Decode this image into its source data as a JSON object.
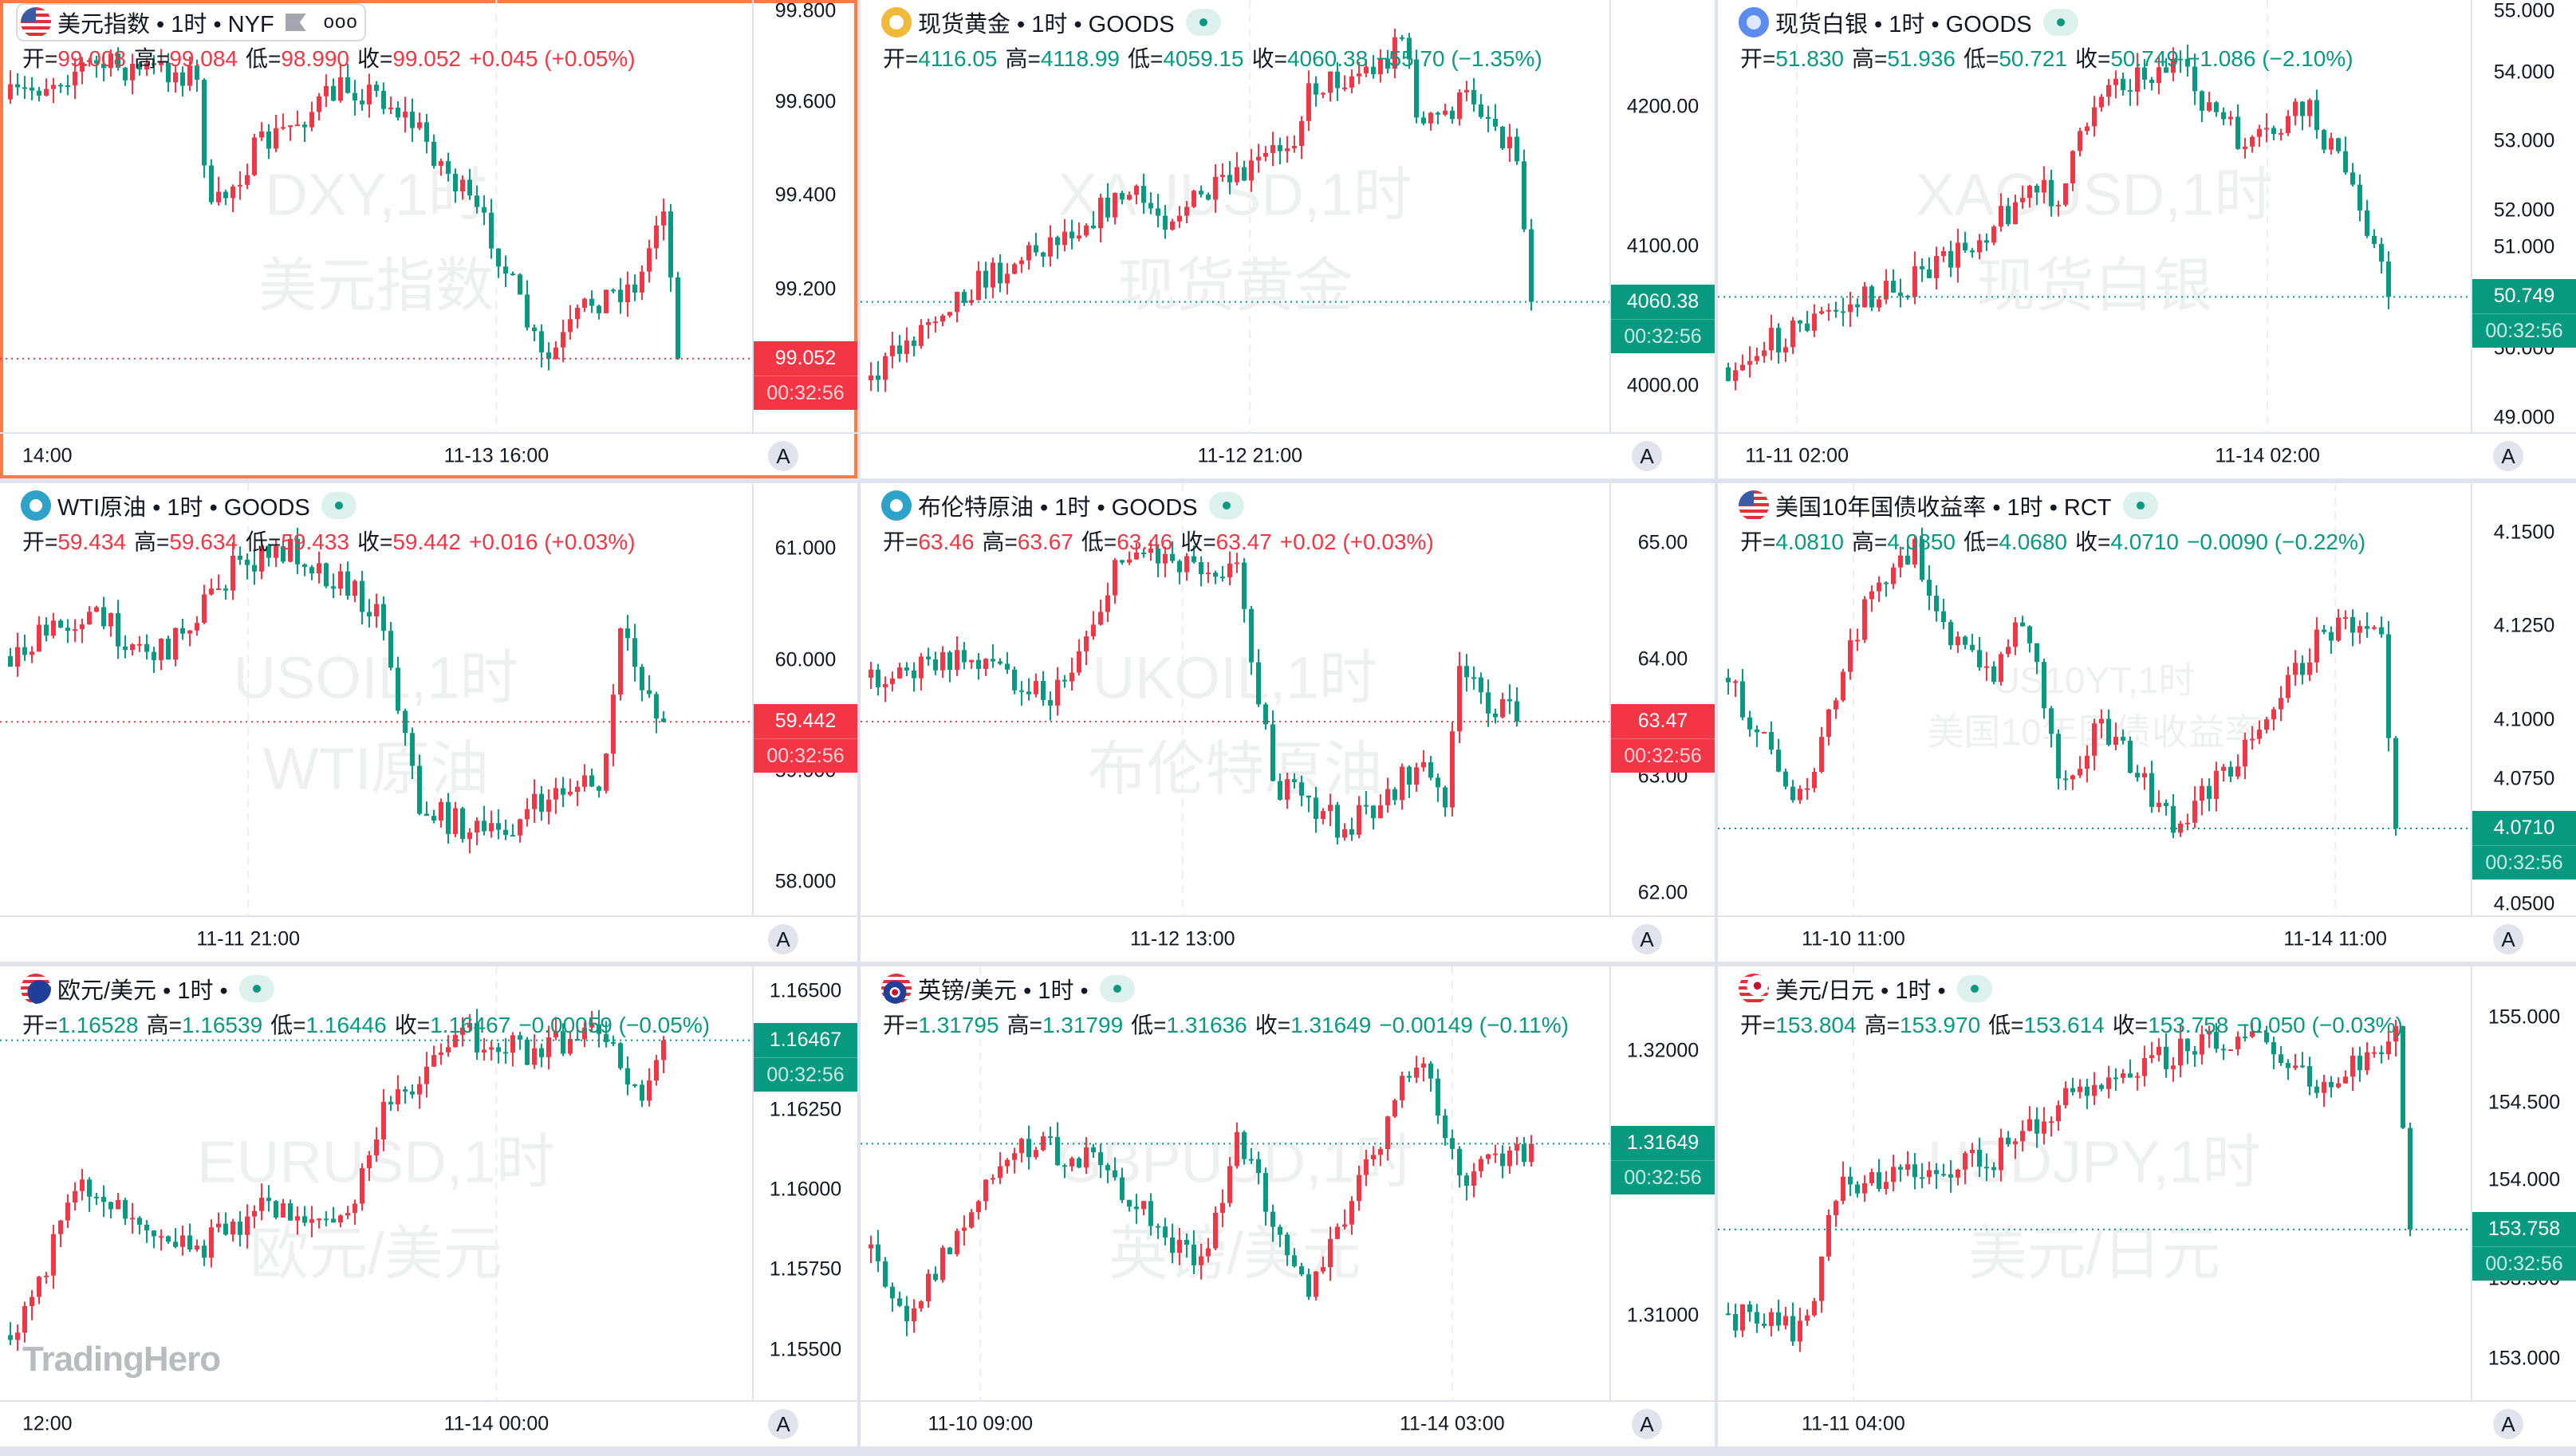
{
  "legend_labels": {
    "open": "开=",
    "high": "高=",
    "low": "低=",
    "close": "收="
  },
  "auto_scale_label": "A",
  "more_menu_label": "ooo",
  "logo": "TradingHero",
  "colors": {
    "up": "#f23645",
    "down": "#089981",
    "selected_border": "#ff7a45",
    "background": "#e0e3eb"
  },
  "panels": [
    {
      "title": "美元指数 • 1时 • NYF",
      "icon": "us-flag-icon",
      "selected": true,
      "direction": "up",
      "open": "99.008",
      "high": "99.084",
      "low": "98.990",
      "close": "99.052",
      "change": "+0.045 (+0.05%)",
      "countdown": "00:32:56",
      "price_ticks": [
        "99.800",
        "99.600",
        "99.400",
        "99.200"
      ],
      "y_range": [
        99.818,
        98.895
      ],
      "time_labels": [
        "14:00",
        "11-13 16:00"
      ],
      "watermark": [
        "DXY,1时",
        "美元指数"
      ]
    },
    {
      "title": "现货黄金 • 1时 • GOODS",
      "icon": "gold-icon",
      "direction": "down",
      "open": "4116.05",
      "high": "4118.99",
      "low": "4059.15",
      "close": "4060.38",
      "change": "−55.70 (−1.35%)",
      "countdown": "00:32:56",
      "price_ticks": [
        "4200.00",
        "4100.00",
        "4000.00"
      ],
      "y_range": [
        4276.5,
        3967.1
      ],
      "time_labels": [
        "11-12 21:00"
      ],
      "watermark": [
        "XAUUSD,1时",
        "现货黄金"
      ]
    },
    {
      "title": "现货白银 • 1时 • GOODS",
      "icon": "silver-icon",
      "direction": "down",
      "open": "51.830",
      "high": "51.936",
      "low": "50.721",
      "close": "50.749",
      "change": "−1.086 (−2.10%)",
      "countdown": "00:32:56",
      "price_ticks": [
        "55.000",
        "54.000",
        "53.000",
        "52.000",
        "51.000",
        "50.000",
        "49.000"
      ],
      "y_range": [
        55.05,
        48.79
      ],
      "time_labels": [
        "11-11 02:00",
        "11-14 02:00"
      ],
      "watermark": [
        "XAGUSD,1时",
        "现货白银"
      ]
    },
    {
      "title": "WTI原油 • 1时 • GOODS",
      "icon": "oil-icon",
      "direction": "up",
      "open": "59.434",
      "high": "59.634",
      "low": "59.433",
      "close": "59.442",
      "change": "+0.016 (+0.03%)",
      "countdown": "00:32:56",
      "price_ticks": [
        "61.000",
        "60.000",
        "59.000",
        "58.000"
      ],
      "y_range": [
        61.59,
        57.7
      ],
      "time_labels": [
        "11-11 21:00"
      ],
      "watermark": [
        "USOIL,1时",
        "WTI原油"
      ]
    },
    {
      "title": "布伦特原油 • 1时 • GOODS",
      "icon": "oil-icon",
      "direction": "up",
      "open": "63.46",
      "high": "63.67",
      "low": "63.46",
      "close": "63.47",
      "change": "+0.02 (+0.03%)",
      "countdown": "00:32:56",
      "price_ticks": [
        "65.00",
        "64.00",
        "63.00",
        "62.00"
      ],
      "y_range": [
        65.51,
        61.81
      ],
      "time_labels": [
        "11-12 13:00"
      ],
      "watermark": [
        "UKOIL,1时",
        "布伦特原油"
      ]
    },
    {
      "title": "美国10年国债收益率 • 1时 • RCT",
      "icon": "us-flag-icon",
      "direction": "down",
      "open": "4.0810",
      "high": "4.0850",
      "low": "4.0680",
      "close": "4.0710",
      "change": "−0.0090 (−0.22%)",
      "countdown": "00:32:56",
      "price_ticks": [
        "4.1500",
        "4.1250",
        "4.1000",
        "4.0750",
        "4.0500"
      ],
      "y_range": [
        4.1632,
        4.0478
      ],
      "time_labels": [
        "11-10 11:00",
        "11-14 11:00"
      ],
      "watermark": [
        "US10YT,1时",
        "美国10年国债收益率"
      ]
    },
    {
      "title": "欧元/美元 • 1时 •",
      "icon": "eur-usd-icon",
      "direction": "down",
      "open": "1.16528",
      "high": "1.16539",
      "low": "1.16446",
      "close": "1.16467",
      "change": "−0.00059 (−0.05%)",
      "countdown": "00:32:56",
      "price_ticks": [
        "1.16500",
        "1.16250",
        "1.16000",
        "1.15750",
        "1.15500"
      ],
      "y_range": [
        1.16698,
        1.15342
      ],
      "time_labels": [
        "12:00",
        "11-14 00:00"
      ],
      "watermark": [
        "EURUSD,1时",
        "欧元/美元"
      ]
    },
    {
      "title": "英镑/美元 • 1时 •",
      "icon": "gbp-usd-icon",
      "direction": "down",
      "open": "1.31795",
      "high": "1.31799",
      "low": "1.31636",
      "close": "1.31649",
      "change": "−0.00149 (−0.11%)",
      "countdown": "00:32:56",
      "price_ticks": [
        "1.32000",
        "1.31000"
      ],
      "y_range": [
        1.32317,
        1.30683
      ],
      "time_labels": [
        "11-10 09:00",
        "11-14 03:00"
      ],
      "watermark": [
        "GBPUSD,1时",
        "英镑/美元"
      ]
    },
    {
      "title": "美元/日元 • 1时 •",
      "icon": "usd-jpy-icon",
      "direction": "down",
      "open": "153.804",
      "high": "153.970",
      "low": "153.614",
      "close": "153.758",
      "change": "−0.050 (−0.03%)",
      "countdown": "00:32:56",
      "price_ticks": [
        "155.000",
        "154.500",
        "154.000",
        "153.500",
        "153.000"
      ],
      "y_range": [
        155.3,
        152.757
      ],
      "time_labels": [
        "11-11 04:00"
      ],
      "watermark": [
        "USDJPY,1时",
        "美元/日元"
      ]
    }
  ]
}
